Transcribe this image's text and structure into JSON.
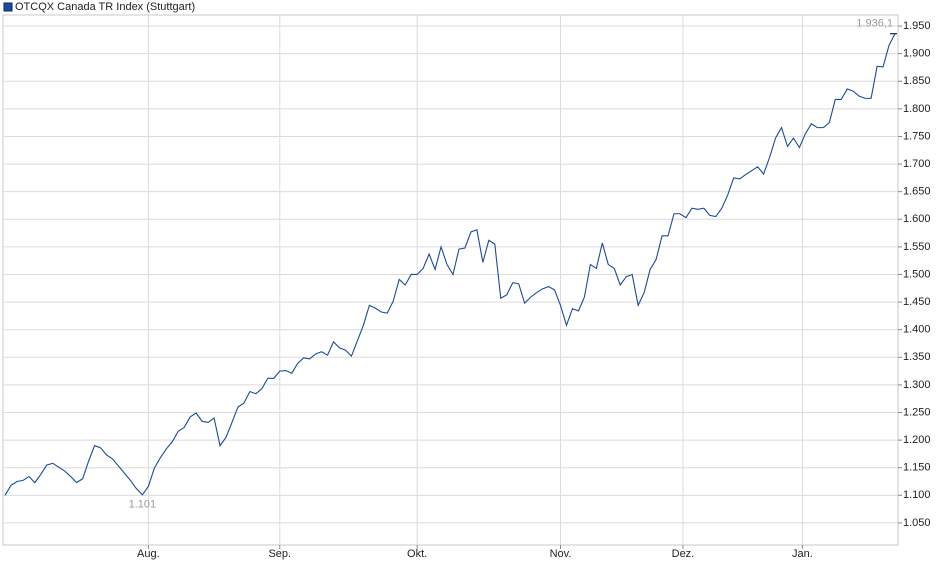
{
  "chart_data": {
    "type": "line",
    "title": "OTCQX Canada TR Index (Stuttgart)",
    "series": [
      {
        "name": "OTCQX Canada TR Index (Stuttgart)",
        "color": "#1b4b9b",
        "values": [
          1100,
          1118,
          1125,
          1127,
          1134,
          1123,
          1138,
          1155,
          1158,
          1151,
          1144,
          1134,
          1123,
          1130,
          1162,
          1190,
          1186,
          1173,
          1166,
          1153,
          1140,
          1127,
          1112,
          1101,
          1116,
          1149,
          1168,
          1184,
          1197,
          1216,
          1223,
          1242,
          1249,
          1234,
          1232,
          1240,
          1190,
          1205,
          1232,
          1260,
          1267,
          1288,
          1284,
          1293,
          1312,
          1312,
          1325,
          1326,
          1321,
          1339,
          1349,
          1347,
          1356,
          1360,
          1354,
          1378,
          1367,
          1363,
          1352,
          1380,
          1408,
          1444,
          1439,
          1432,
          1430,
          1452,
          1491,
          1481,
          1500,
          1500,
          1511,
          1537,
          1509,
          1550,
          1518,
          1500,
          1546,
          1548,
          1577,
          1581,
          1522,
          1562,
          1555,
          1457,
          1463,
          1485,
          1483,
          1448,
          1459,
          1467,
          1474,
          1478,
          1472,
          1444,
          1408,
          1438,
          1434,
          1459,
          1518,
          1511,
          1557,
          1518,
          1511,
          1481,
          1496,
          1500,
          1444,
          1467,
          1509,
          1527,
          1570,
          1570,
          1610,
          1610,
          1603,
          1620,
          1618,
          1620,
          1607,
          1605,
          1620,
          1644,
          1675,
          1673,
          1681,
          1688,
          1695,
          1682,
          1712,
          1747,
          1766,
          1732,
          1747,
          1730,
          1755,
          1773,
          1766,
          1766,
          1775,
          1817,
          1817,
          1836,
          1832,
          1823,
          1819,
          1819,
          1877,
          1876,
          1915,
          1936.1
        ],
        "value_labels": [
          null,
          null,
          null,
          null,
          null,
          null,
          null,
          null,
          null,
          null,
          null,
          null,
          null,
          null,
          null,
          null,
          null,
          null,
          null,
          null,
          null,
          null,
          null,
          "1.101",
          null,
          null,
          null,
          null,
          null,
          null,
          null,
          null,
          null,
          null,
          null,
          null,
          null,
          null,
          null,
          null,
          null,
          null,
          null,
          null,
          null,
          null,
          null,
          null,
          null,
          null,
          null,
          null,
          null,
          null,
          null,
          null,
          null,
          null,
          null,
          null,
          null,
          null,
          null,
          null,
          null,
          null,
          null,
          null,
          null,
          null,
          null,
          null,
          null,
          null,
          null,
          null,
          null,
          null,
          null,
          null,
          null,
          null,
          null,
          null,
          null,
          null,
          null,
          null,
          null,
          null,
          null,
          null,
          null,
          null,
          null,
          null,
          null,
          null,
          null,
          null,
          null,
          null,
          null,
          null,
          null,
          null,
          null,
          null,
          null,
          null,
          null,
          null,
          null,
          null,
          null,
          null,
          null,
          null,
          null,
          null,
          null,
          null,
          null,
          null,
          null,
          null,
          null,
          null,
          null,
          null,
          null,
          null,
          null,
          null,
          null,
          null,
          null,
          null,
          null,
          null,
          null,
          null,
          null,
          null,
          null,
          null,
          null,
          null,
          null,
          "1.936,1"
        ]
      }
    ],
    "xlim": [
      0,
      149
    ],
    "xticks": [
      {
        "value": 24,
        "label": "Aug."
      },
      {
        "value": 46,
        "label": "Sep."
      },
      {
        "value": 69,
        "label": "Okt."
      },
      {
        "value": 93,
        "label": "Nov."
      },
      {
        "value": 113.5,
        "label": "Dez."
      },
      {
        "value": 133.5,
        "label": "Jan."
      }
    ],
    "ylim": [
      1010,
      1970
    ],
    "yticks": [
      {
        "value": 1050,
        "label": "1.050"
      },
      {
        "value": 1100,
        "label": "1.100"
      },
      {
        "value": 1150,
        "label": "1.150"
      },
      {
        "value": 1200,
        "label": "1.200"
      },
      {
        "value": 1250,
        "label": "1.250"
      },
      {
        "value": 1300,
        "label": "1.300"
      },
      {
        "value": 1350,
        "label": "1.350"
      },
      {
        "value": 1400,
        "label": "1.400"
      },
      {
        "value": 1450,
        "label": "1.450"
      },
      {
        "value": 1500,
        "label": "1.500"
      },
      {
        "value": 1550,
        "label": "1.550"
      },
      {
        "value": 1600,
        "label": "1.600"
      },
      {
        "value": 1650,
        "label": "1.650"
      },
      {
        "value": 1700,
        "label": "1.700"
      },
      {
        "value": 1750,
        "label": "1.750"
      },
      {
        "value": 1800,
        "label": "1.800"
      },
      {
        "value": 1850,
        "label": "1.850"
      },
      {
        "value": 1900,
        "label": "1.900"
      },
      {
        "value": 1950,
        "label": "1.950"
      }
    ],
    "grid": true
  }
}
